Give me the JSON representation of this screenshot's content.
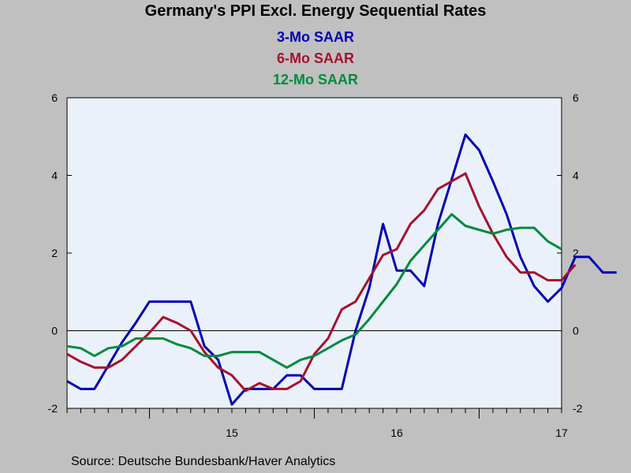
{
  "chart_data": {
    "type": "line",
    "title": "Germany's PPI Excl. Energy Sequential Rates",
    "source": "Source:  Deutsche Bundesbank/Haver Analytics",
    "x_start": "2014-07",
    "x_end": "2017-07",
    "ylim": [
      -2,
      6
    ],
    "yticks": [
      -2,
      0,
      2,
      4,
      6
    ],
    "ytick_labels": [
      "-2",
      "0",
      "2",
      "4",
      "6"
    ],
    "xtick_labels": [
      {
        "label": "15",
        "month": "2015-07"
      },
      {
        "label": "16",
        "month": "2016-07"
      },
      {
        "label": "17",
        "month": "2017-07"
      }
    ],
    "reference_line": 0,
    "legend_placement": "top-center",
    "series": [
      {
        "name": "3-Mo SAAR",
        "color": "#0000b4",
        "values": [
          -1.3,
          -1.5,
          -1.5,
          -0.9,
          -0.3,
          0.2,
          0.75,
          0.75,
          0.75,
          0.75,
          -0.4,
          -0.75,
          -1.9,
          -1.5,
          -1.5,
          -1.5,
          -1.15,
          -1.15,
          -1.5,
          -1.5,
          -1.5,
          0.0,
          1.1,
          2.75,
          1.55,
          1.55,
          1.15,
          2.75,
          3.9,
          5.05,
          4.65,
          3.85,
          3.0,
          1.9,
          1.15,
          0.75,
          1.1,
          1.9,
          1.9,
          1.5,
          1.5
        ]
      },
      {
        "name": "6-Mo SAAR",
        "color": "#a8102c",
        "values": [
          -0.6,
          -0.8,
          -0.95,
          -0.95,
          -0.75,
          -0.4,
          -0.05,
          0.35,
          0.2,
          0.0,
          -0.55,
          -0.95,
          -1.15,
          -1.55,
          -1.35,
          -1.5,
          -1.5,
          -1.3,
          -0.6,
          -0.2,
          0.55,
          0.75,
          1.35,
          1.95,
          2.1,
          2.75,
          3.1,
          3.65,
          3.85,
          4.05,
          3.2,
          2.5,
          1.9,
          1.5,
          1.5,
          1.3,
          1.3,
          1.7
        ]
      },
      {
        "name": "12-Mo SAAR",
        "color": "#008a3c",
        "values": [
          -0.4,
          -0.45,
          -0.65,
          -0.45,
          -0.4,
          -0.2,
          -0.2,
          -0.2,
          -0.35,
          -0.45,
          -0.65,
          -0.65,
          -0.55,
          -0.55,
          -0.55,
          -0.75,
          -0.95,
          -0.75,
          -0.65,
          -0.45,
          -0.25,
          -0.1,
          0.3,
          0.75,
          1.2,
          1.8,
          2.2,
          2.6,
          3.0,
          2.7,
          2.6,
          2.5,
          2.6,
          2.65,
          2.65,
          2.3,
          2.1
        ]
      }
    ]
  }
}
